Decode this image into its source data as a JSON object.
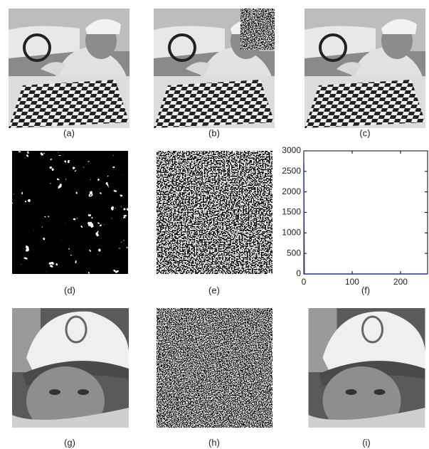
{
  "labels": [
    "(a)",
    "(b)",
    "(c)",
    "(d)",
    "(e)",
    "(f)",
    "(g)",
    "(h)",
    "(i)"
  ],
  "chart_data": {
    "type": "line",
    "x": [
      0,
      1,
      256
    ],
    "values": [
      2700,
      0,
      0
    ],
    "color": "#1f2fa8",
    "xlim": [
      0,
      256
    ],
    "ylim": [
      0,
      3000
    ],
    "xticks": [
      0,
      100,
      200
    ],
    "yticks": [
      0,
      500,
      1000,
      1500,
      2000,
      2500,
      3000
    ]
  }
}
